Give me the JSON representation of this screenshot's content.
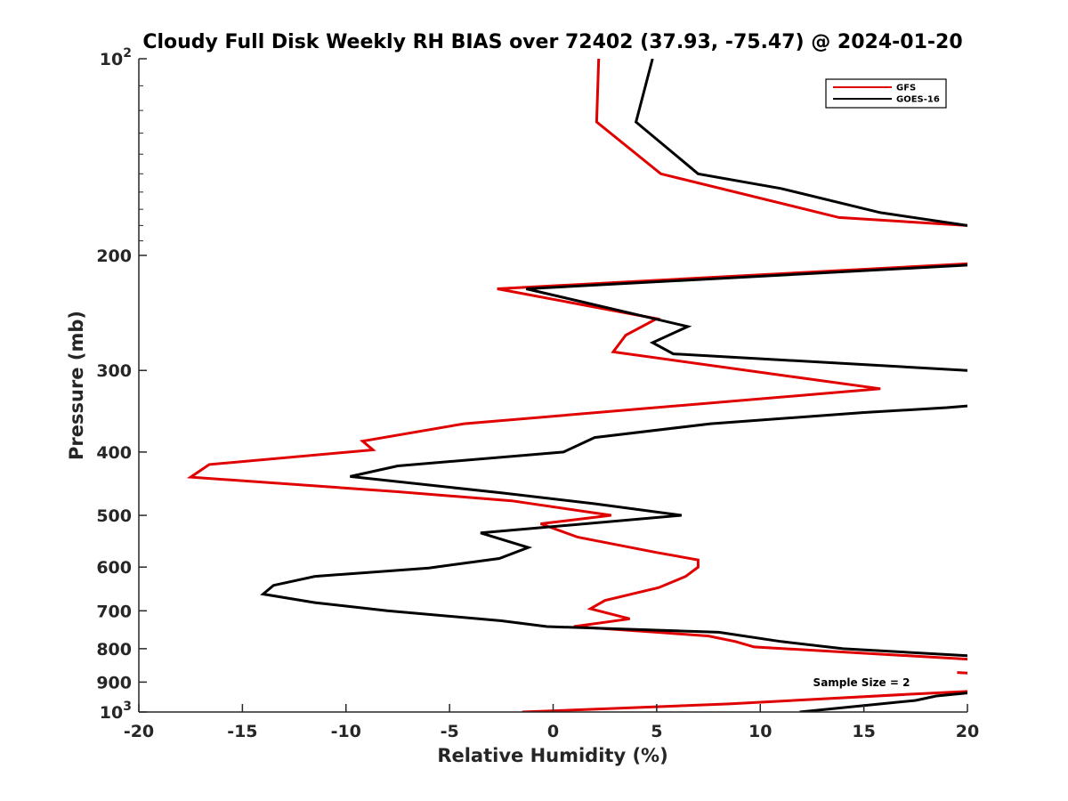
{
  "chart_data": {
    "type": "line",
    "title": "Cloudy Full Disk Weekly RH BIAS over 72402 (37.93, -75.47) @ 2024-01-20",
    "xlabel": "Relative Humidity (%)",
    "ylabel": "Pressure (mb)",
    "xlim": [
      -20,
      20
    ],
    "ylim": [
      100,
      1000
    ],
    "y_scale": "log",
    "y_reversed": true,
    "x_ticks": [
      "-20",
      "-15",
      "-10",
      "-5",
      "0",
      "5",
      "10",
      "15",
      "20"
    ],
    "y_ticks": [
      {
        "value": 100,
        "base": "10",
        "exp": "2"
      },
      {
        "value": 200,
        "label": "200"
      },
      {
        "value": 300,
        "label": "300"
      },
      {
        "value": 400,
        "label": "400"
      },
      {
        "value": 500,
        "label": "500"
      },
      {
        "value": 600,
        "label": "600"
      },
      {
        "value": 700,
        "label": "700"
      },
      {
        "value": 800,
        "label": "800"
      },
      {
        "value": 900,
        "label": "900"
      },
      {
        "value": 1000,
        "base": "10",
        "exp": "3"
      }
    ],
    "legend_position": "top-right",
    "annotation": "Sample Size = 2",
    "series": [
      {
        "name": "GFS",
        "color": "#e00000",
        "points": [
          [
            2.2,
            100
          ],
          [
            2.1,
            125
          ],
          [
            5.2,
            150
          ],
          [
            13.8,
            175
          ],
          [
            20.0,
            180
          ],
          [
            null,
            null
          ],
          [
            20.0,
            206
          ],
          [
            -2.7,
            225
          ],
          [
            5.0,
            250
          ],
          [
            3.5,
            265
          ],
          [
            2.9,
            281
          ],
          [
            11.0,
            305
          ],
          [
            15.8,
            320
          ],
          [
            -4.3,
            362
          ],
          [
            -9.2,
            385
          ],
          [
            -8.7,
            397
          ],
          [
            -16.6,
            418
          ],
          [
            -17.5,
            437
          ],
          [
            -7.5,
            460
          ],
          [
            -2.0,
            475
          ],
          [
            2.8,
            500
          ],
          [
            -0.6,
            515
          ],
          [
            1.2,
            540
          ],
          [
            5.0,
            570
          ],
          [
            7.0,
            585
          ],
          [
            7.0,
            600
          ],
          [
            6.4,
            620
          ],
          [
            5.1,
            645
          ],
          [
            2.5,
            675
          ],
          [
            1.8,
            695
          ],
          [
            3.7,
            720
          ],
          [
            1.0,
            740
          ],
          [
            5.0,
            755
          ],
          [
            7.5,
            765
          ],
          [
            8.8,
            780
          ],
          [
            9.7,
            795
          ],
          [
            20.0,
            830
          ],
          [
            null,
            null
          ],
          [
            19.5,
            870
          ],
          [
            20.0,
            872
          ],
          [
            null,
            null
          ],
          [
            20.0,
            930
          ],
          [
            17.0,
            940
          ],
          [
            8.5,
            972
          ],
          [
            -1.5,
            1000
          ]
        ]
      },
      {
        "name": "GOES-16",
        "color": "#000000",
        "points": [
          [
            4.8,
            100
          ],
          [
            4.0,
            125
          ],
          [
            7.0,
            150
          ],
          [
            11.0,
            158
          ],
          [
            15.8,
            172
          ],
          [
            20.0,
            180
          ],
          [
            null,
            null
          ],
          [
            20.0,
            207
          ],
          [
            -1.3,
            225
          ],
          [
            6.5,
            257
          ],
          [
            4.8,
            272
          ],
          [
            5.8,
            283
          ],
          [
            20.0,
            300
          ],
          [
            null,
            null
          ],
          [
            20.0,
            340
          ],
          [
            19.0,
            342
          ],
          [
            15.0,
            348
          ],
          [
            7.6,
            362
          ],
          [
            2.0,
            380
          ],
          [
            0.5,
            400
          ],
          [
            -7.5,
            420
          ],
          [
            -9.8,
            436
          ],
          [
            -2.5,
            462
          ],
          [
            2.0,
            480
          ],
          [
            6.2,
            500
          ],
          [
            -3.5,
            532
          ],
          [
            -1.2,
            560
          ],
          [
            -2.6,
            582
          ],
          [
            -6.0,
            602
          ],
          [
            -11.5,
            620
          ],
          [
            -13.5,
            640
          ],
          [
            -14.0,
            660
          ],
          [
            -11.5,
            680
          ],
          [
            -8.0,
            700
          ],
          [
            -2.5,
            725
          ],
          [
            -0.3,
            740
          ],
          [
            8.0,
            755
          ],
          [
            11.0,
            780
          ],
          [
            14.0,
            800
          ],
          [
            20.0,
            820
          ],
          [
            null,
            null
          ],
          [
            20.0,
            935
          ],
          [
            18.5,
            945
          ],
          [
            17.5,
            960
          ],
          [
            11.9,
            1000
          ]
        ]
      }
    ]
  }
}
